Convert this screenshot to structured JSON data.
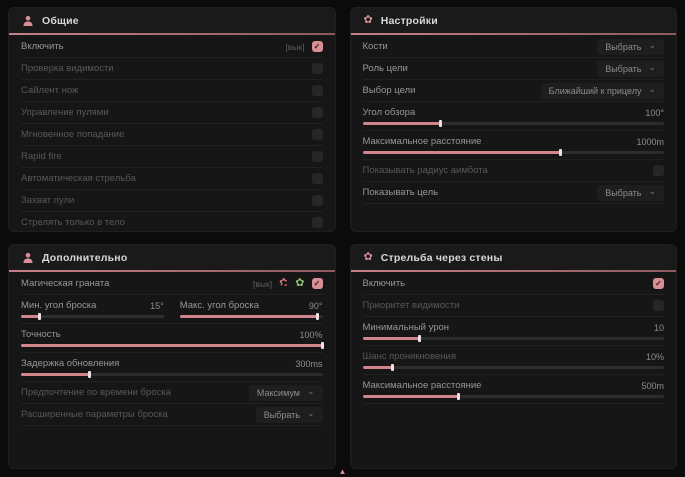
{
  "accent": "#d98f95",
  "icons": {
    "flower": "✿",
    "chevron": "⌄",
    "check": "✓",
    "marker": "▲"
  },
  "panels": {
    "general": {
      "title": "Общие",
      "icon": "person-icon",
      "rows": [
        {
          "label": "Включить",
          "tag": "[вык]",
          "checked": true
        },
        {
          "label": "Проверка видимости",
          "checked": false
        },
        {
          "label": "Сайлент нож",
          "checked": false
        },
        {
          "label": "Управление пулями",
          "checked": false
        },
        {
          "label": "Мгновенное попадание",
          "checked": false
        },
        {
          "label": "Rapid fire",
          "checked": false
        },
        {
          "label": "Автоматическая стрельба",
          "checked": false
        },
        {
          "label": "Захват пули",
          "checked": false
        },
        {
          "label": "Стрелять только в тело",
          "checked": false
        }
      ]
    },
    "settings": {
      "title": "Настройки",
      "icon": "flower-icon",
      "rows": [
        {
          "label": "Кости",
          "value": "Выбрать",
          "type": "dropdown"
        },
        {
          "label": "Роль цели",
          "value": "Выбрать",
          "type": "dropdown"
        },
        {
          "label": "Выбор цели",
          "value": "Ближайший к прицелу",
          "type": "dropdown"
        },
        {
          "label": "Угол обзора",
          "value": "100°",
          "type": "slider",
          "fill_pct": 26
        },
        {
          "label": "Максимальное расстояние",
          "value": "1000m",
          "type": "slider",
          "fill_pct": 66
        },
        {
          "label": "Показывать радиус аимбота",
          "checked": false,
          "type": "checkbox"
        },
        {
          "label": "Показывать цель",
          "value": "Выбрать",
          "type": "dropdown"
        }
      ]
    },
    "additional": {
      "title": "Дополнительно",
      "icon": "person-icon",
      "rows": [
        {
          "label": "Магическая граната",
          "tag": "[вык]",
          "checked": true,
          "badges": [
            "flower-slash-icon",
            "flower-icon"
          ]
        },
        {
          "label": "Мин. угол броска",
          "value": "15°",
          "type": "slider",
          "fill_pct": 13
        },
        {
          "label": "Макс. угол броска",
          "value": "90°",
          "type": "slider",
          "fill_pct": 97
        },
        {
          "label": "Точность",
          "value": "100%",
          "type": "slider",
          "fill_pct": 100
        },
        {
          "label": "Задержка обновления",
          "value": "300ms",
          "type": "slider",
          "fill_pct": 23
        },
        {
          "label": "Предпочтение по времени броска",
          "value": "Максимум",
          "type": "dropdown"
        },
        {
          "label": "Расширенные параметры броска",
          "value": "Выбрать",
          "type": "dropdown"
        }
      ]
    },
    "walls": {
      "title": "Стрельба через стены",
      "icon": "flower-icon",
      "rows": [
        {
          "label": "Включить",
          "checked": true
        },
        {
          "label": "Приоритет видимости",
          "checked": false
        },
        {
          "label": "Минимальный урон",
          "value": "10",
          "type": "slider",
          "fill_pct": 19
        },
        {
          "label": "Шанс проникновения",
          "value": "10%",
          "type": "slider",
          "fill_pct": 10
        },
        {
          "label": "Максимальное расстояние",
          "value": "500m",
          "type": "slider",
          "fill_pct": 32
        }
      ]
    }
  }
}
